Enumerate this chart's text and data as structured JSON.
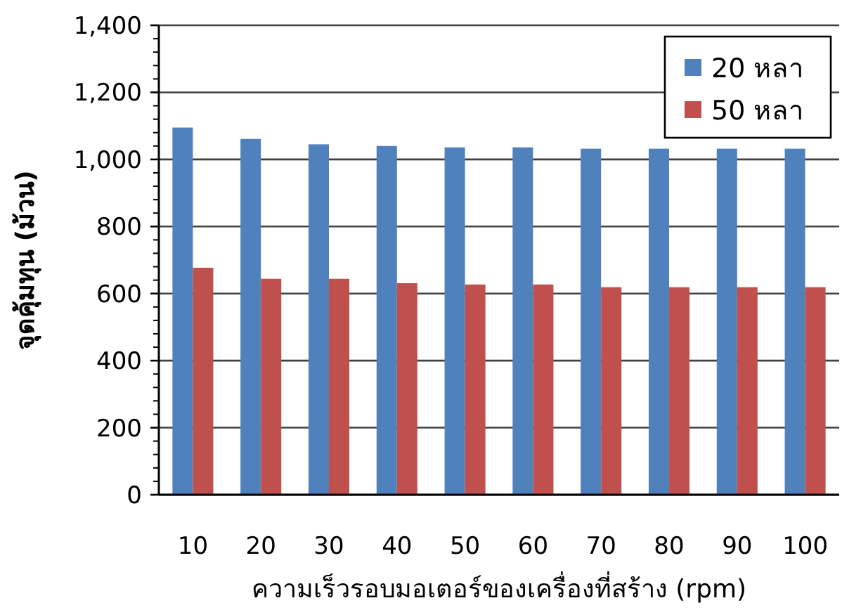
{
  "chart_data": {
    "type": "bar",
    "xlabel": "ความเร็วรอบมอเตอร์ของเครื่องที่สร้าง (rpm)",
    "ylabel": "จุดคุ้มทุน (ม้วน)",
    "categories": [
      "10",
      "20",
      "30",
      "40",
      "50",
      "60",
      "70",
      "80",
      "90",
      "100"
    ],
    "series": [
      {
        "name": "20 หลา",
        "color": "#4f81bd",
        "values": [
          1095,
          1061,
          1045,
          1040,
          1036,
          1036,
          1032,
          1032,
          1032,
          1032
        ]
      },
      {
        "name": "50 หลา",
        "color": "#c0504d",
        "values": [
          677,
          644,
          644,
          631,
          627,
          627,
          619,
          619,
          619,
          619
        ]
      }
    ],
    "ylim": [
      0,
      1400
    ],
    "yticks": [
      {
        "value": 0,
        "label": "0"
      },
      {
        "value": 200,
        "label": "200"
      },
      {
        "value": 400,
        "label": "400"
      },
      {
        "value": 600,
        "label": "600"
      },
      {
        "value": 800,
        "label": "800"
      },
      {
        "value": 1000,
        "label": "1,000"
      },
      {
        "value": 1200,
        "label": "1,200"
      },
      {
        "value": 1400,
        "label": "1,400"
      }
    ],
    "grid": "y",
    "legend": "top right"
  }
}
